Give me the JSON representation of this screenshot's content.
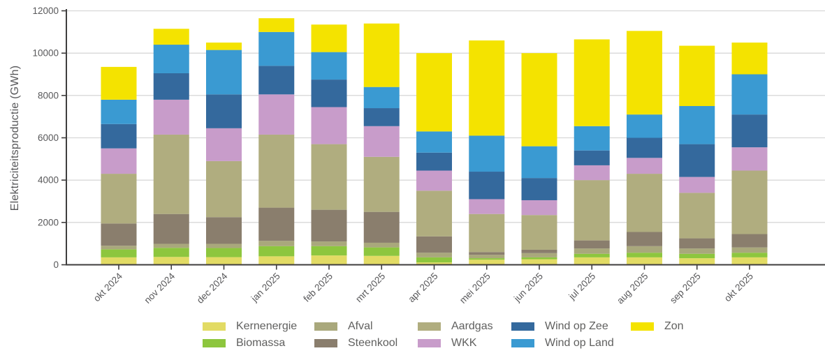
{
  "chart_data": {
    "type": "bar",
    "stacked": true,
    "title": "",
    "xlabel": "",
    "ylabel": "Elektriciteitsproductie (GWh)",
    "unit": "GWh",
    "ylim": [
      0,
      12000
    ],
    "yticks": [
      0,
      2000,
      4000,
      6000,
      8000,
      10000,
      12000
    ],
    "grid": "horizontal",
    "legend_position": "bottom",
    "categories": [
      "okt 2024",
      "nov 2024",
      "dec 2024",
      "jan 2025",
      "feb 2025",
      "mrt 2025",
      "apr 2025",
      "mei 2025",
      "jun 2025",
      "jul 2025",
      "aug 2025",
      "sep 2025",
      "okt 2025"
    ],
    "series": [
      {
        "name": "Kernenergie",
        "color": "#e2db64",
        "values": [
          350,
          370,
          360,
          400,
          440,
          420,
          110,
          240,
          260,
          350,
          350,
          310,
          350
        ]
      },
      {
        "name": "Biomassa",
        "color": "#8dc63e",
        "values": [
          380,
          430,
          430,
          480,
          440,
          400,
          240,
          70,
          90,
          170,
          220,
          210,
          220
        ]
      },
      {
        "name": "Afval",
        "color": "#a9a87c",
        "values": [
          170,
          190,
          200,
          250,
          220,
          220,
          220,
          160,
          200,
          250,
          310,
          250,
          250
        ]
      },
      {
        "name": "Steenkool",
        "color": "#8a7e6d",
        "values": [
          1050,
          1410,
          1260,
          1570,
          1500,
          1460,
          770,
          130,
          160,
          380,
          670,
          480,
          630
        ]
      },
      {
        "name": "Aardgas",
        "color": "#b0ad7f",
        "values": [
          2350,
          3750,
          2650,
          3450,
          3100,
          2600,
          2160,
          1800,
          1640,
          2850,
          2750,
          2150,
          3000
        ]
      },
      {
        "name": "WKK",
        "color": "#c89cca",
        "values": [
          1200,
          1650,
          1550,
          1900,
          1750,
          1450,
          950,
          700,
          700,
          700,
          750,
          750,
          1100
        ]
      },
      {
        "name": "Wind op Zee",
        "color": "#34699d",
        "values": [
          1150,
          1250,
          1600,
          1350,
          1300,
          850,
          850,
          1300,
          1050,
          700,
          950,
          1550,
          1550
        ]
      },
      {
        "name": "Wind op Land",
        "color": "#3a9ad2",
        "values": [
          1150,
          1350,
          2100,
          1600,
          1300,
          1000,
          1000,
          1700,
          1500,
          1150,
          1100,
          1800,
          1900
        ]
      },
      {
        "name": "Zon",
        "color": "#f4e300",
        "values": [
          1550,
          750,
          350,
          650,
          1300,
          3000,
          3700,
          4500,
          4400,
          4100,
          3950,
          2850,
          1500
        ]
      }
    ],
    "totals": [
      9350,
      11150,
      10500,
      11650,
      11350,
      11400,
      10000,
      10600,
      10000,
      10650,
      11050,
      10350,
      10500
    ],
    "style": {
      "axis_color": "#3f3e3e",
      "grid_color": "#d8d8d8",
      "label_color": "#58585a"
    }
  }
}
